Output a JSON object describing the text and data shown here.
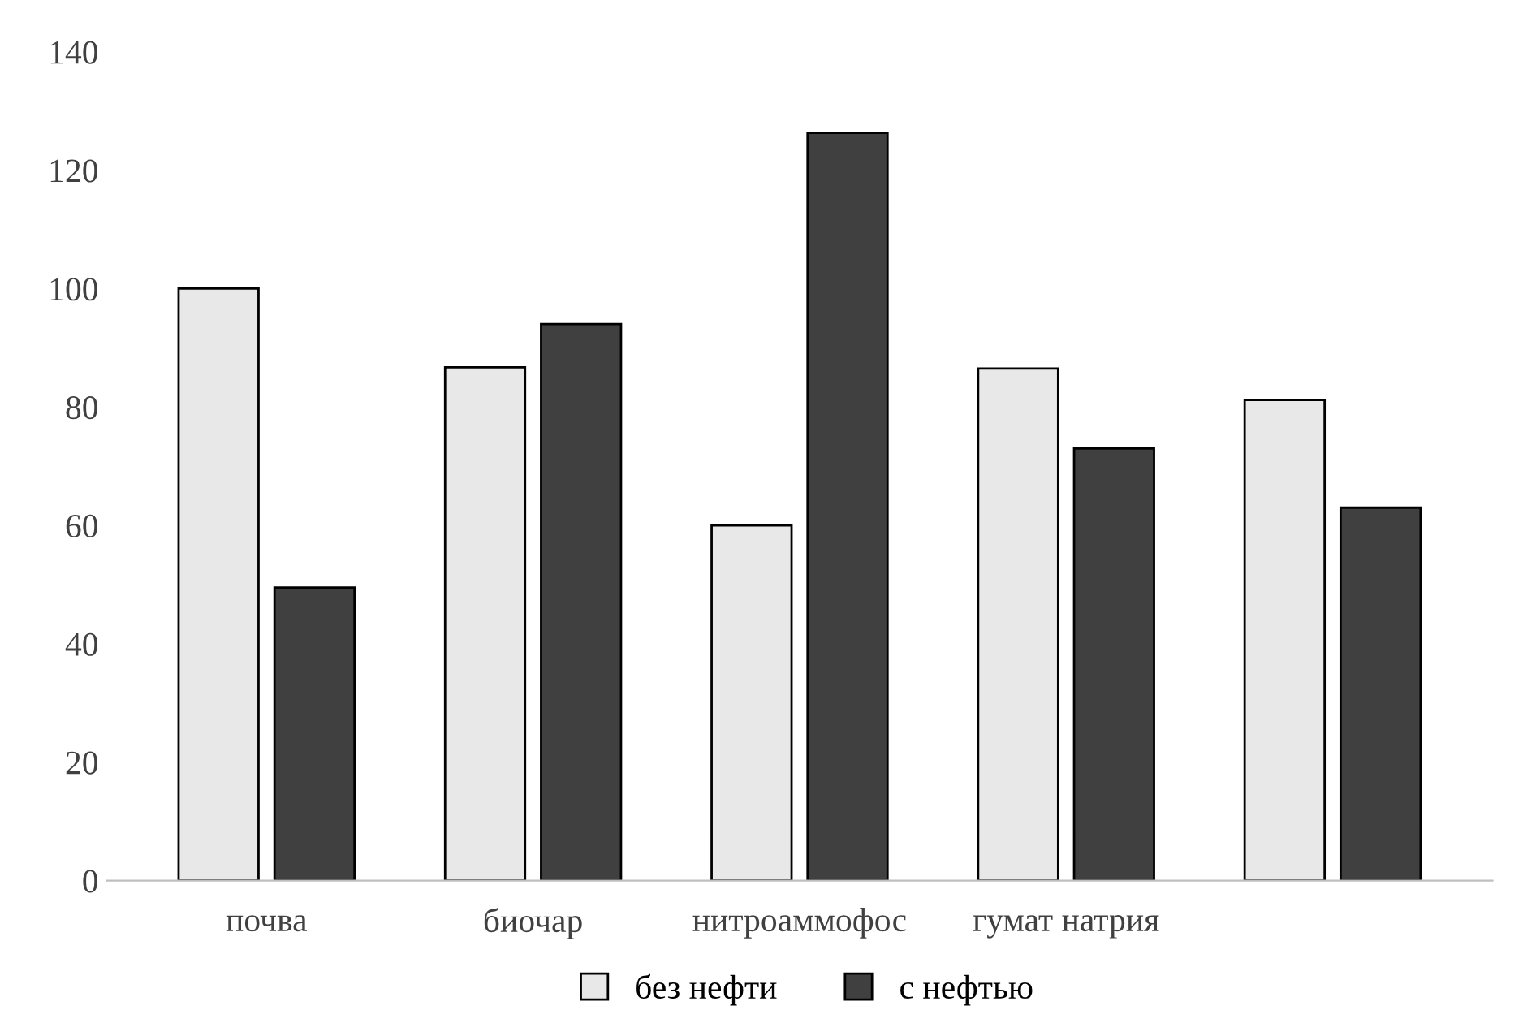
{
  "chart_data": {
    "type": "bar",
    "categories": [
      "почва",
      "биочар",
      "нитроаммофос",
      "гумат натрия",
      null
    ],
    "series": [
      {
        "name": "без нефти",
        "color": "#e8e8e8",
        "values": [
          100,
          86.7,
          60,
          86.5,
          81.2
        ]
      },
      {
        "name": "с нефтью",
        "color": "#404040",
        "values": [
          49.5,
          94,
          126.3,
          73,
          63
        ]
      }
    ],
    "ylim": [
      0,
      140
    ],
    "yticks": [
      0,
      20,
      40,
      60,
      80,
      100,
      120,
      140
    ],
    "grid": false,
    "legend": "bottom"
  }
}
